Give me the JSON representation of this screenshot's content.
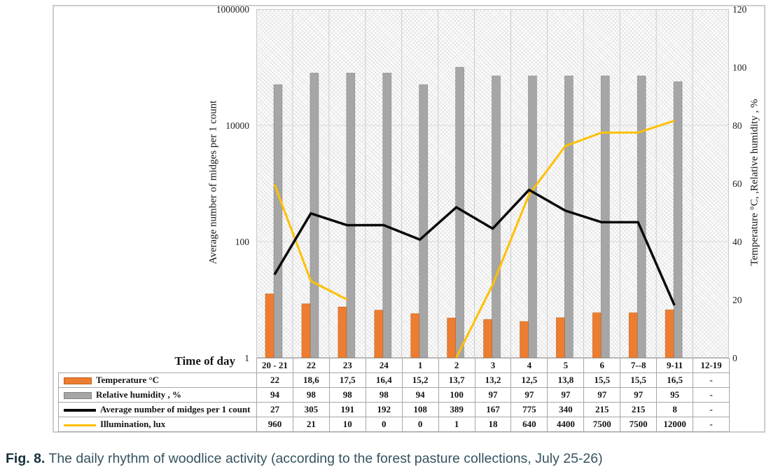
{
  "figure": {
    "caption_prefix": "Fig. 8.",
    "caption_body": " The daily rhythm of woodlice activity (according to the forest pasture collections, July 25-26)"
  },
  "colors": {
    "temperature_bar": "#ED7D31",
    "humidity_bar": "#A6A6A6",
    "midges_line": "#0A0A0A",
    "illumination_line": "#FFC000",
    "gridline_vertical": "#cccccc",
    "gridline_horizontal": "#d9d9d9",
    "plot_border": "#c9c9c9",
    "table_border": "#a6a6a6"
  },
  "chart_data": {
    "type": "bar",
    "subtype": "combo-bar-line",
    "categories": [
      "20 - 21",
      "22",
      "23",
      "24",
      "1",
      "2",
      "3",
      "4",
      "5",
      "6",
      "7--8",
      "9-11",
      "12-19"
    ],
    "series": [
      {
        "name": "Temperature °C",
        "type": "bar",
        "axis": "right",
        "color": "#ED7D31",
        "values": [
          22,
          18.6,
          17.5,
          16.4,
          15.2,
          13.7,
          13.2,
          12.5,
          13.8,
          15.5,
          15.5,
          16.5,
          null
        ]
      },
      {
        "name": "Relative humidity , %",
        "type": "bar",
        "axis": "right",
        "color": "#A6A6A6",
        "values": [
          94,
          98,
          98,
          98,
          94,
          100,
          97,
          97,
          97,
          97,
          97,
          95,
          null
        ]
      },
      {
        "name": "Average number of midges per 1 count",
        "type": "line",
        "axis": "left-log",
        "color": "#0A0A0A",
        "values": [
          27,
          305,
          191,
          192,
          108,
          389,
          167,
          775,
          340,
          215,
          215,
          8,
          null
        ]
      },
      {
        "name": "Illumination, lux",
        "type": "line",
        "axis": "left-log",
        "color": "#FFC000",
        "values": [
          960,
          21,
          10,
          0,
          0,
          1,
          18,
          640,
          4400,
          7500,
          7500,
          12000,
          null
        ]
      }
    ],
    "left_axis": {
      "title": "Average number of midges per 1 count",
      "scale": "log",
      "min": 1,
      "max": 1000000,
      "ticks": [
        "1000000",
        "10000",
        "100",
        "1"
      ]
    },
    "right_axis": {
      "title": "Temperature °C, ,Relative humidity , %",
      "min": 0,
      "max": 120,
      "ticks": [
        "120",
        "100",
        "80",
        "60",
        "40",
        "20",
        "0"
      ]
    },
    "x_axis": {
      "title": "Time of day"
    },
    "grid": "major-only",
    "legend_position": "table-left"
  },
  "table": {
    "corner_label": "Time of day",
    "columns": [
      "20 - 21",
      "22",
      "23",
      "24",
      "1",
      "2",
      "3",
      "4",
      "5",
      "6",
      "7--8",
      "9-11",
      "12-19"
    ],
    "rows": [
      {
        "label": "Temperature °C",
        "key": "temperature-swatch",
        "values": [
          "22",
          "18,6",
          "17,5",
          "16,4",
          "15,2",
          "13,7",
          "13,2",
          "12,5",
          "13,8",
          "15,5",
          "15,5",
          "16,5",
          "-"
        ]
      },
      {
        "label": "Relative humidity , %",
        "key": "humidity-swatch",
        "values": [
          "94",
          "98",
          "98",
          "98",
          "94",
          "100",
          "97",
          "97",
          "97",
          "97",
          "97",
          "95",
          "-"
        ]
      },
      {
        "label": "Average number of midges per 1 count",
        "key": "midges-line-swatch",
        "values": [
          "27",
          "305",
          "191",
          "192",
          "108",
          "389",
          "167",
          "775",
          "340",
          "215",
          "215",
          "8",
          "-"
        ]
      },
      {
        "label": "Illumination, lux",
        "key": "illumination-line-swatch",
        "values": [
          "960",
          "21",
          "10",
          "0",
          "0",
          "1",
          "18",
          "640",
          "4400",
          "7500",
          "7500",
          "12000",
          "-"
        ]
      }
    ]
  }
}
